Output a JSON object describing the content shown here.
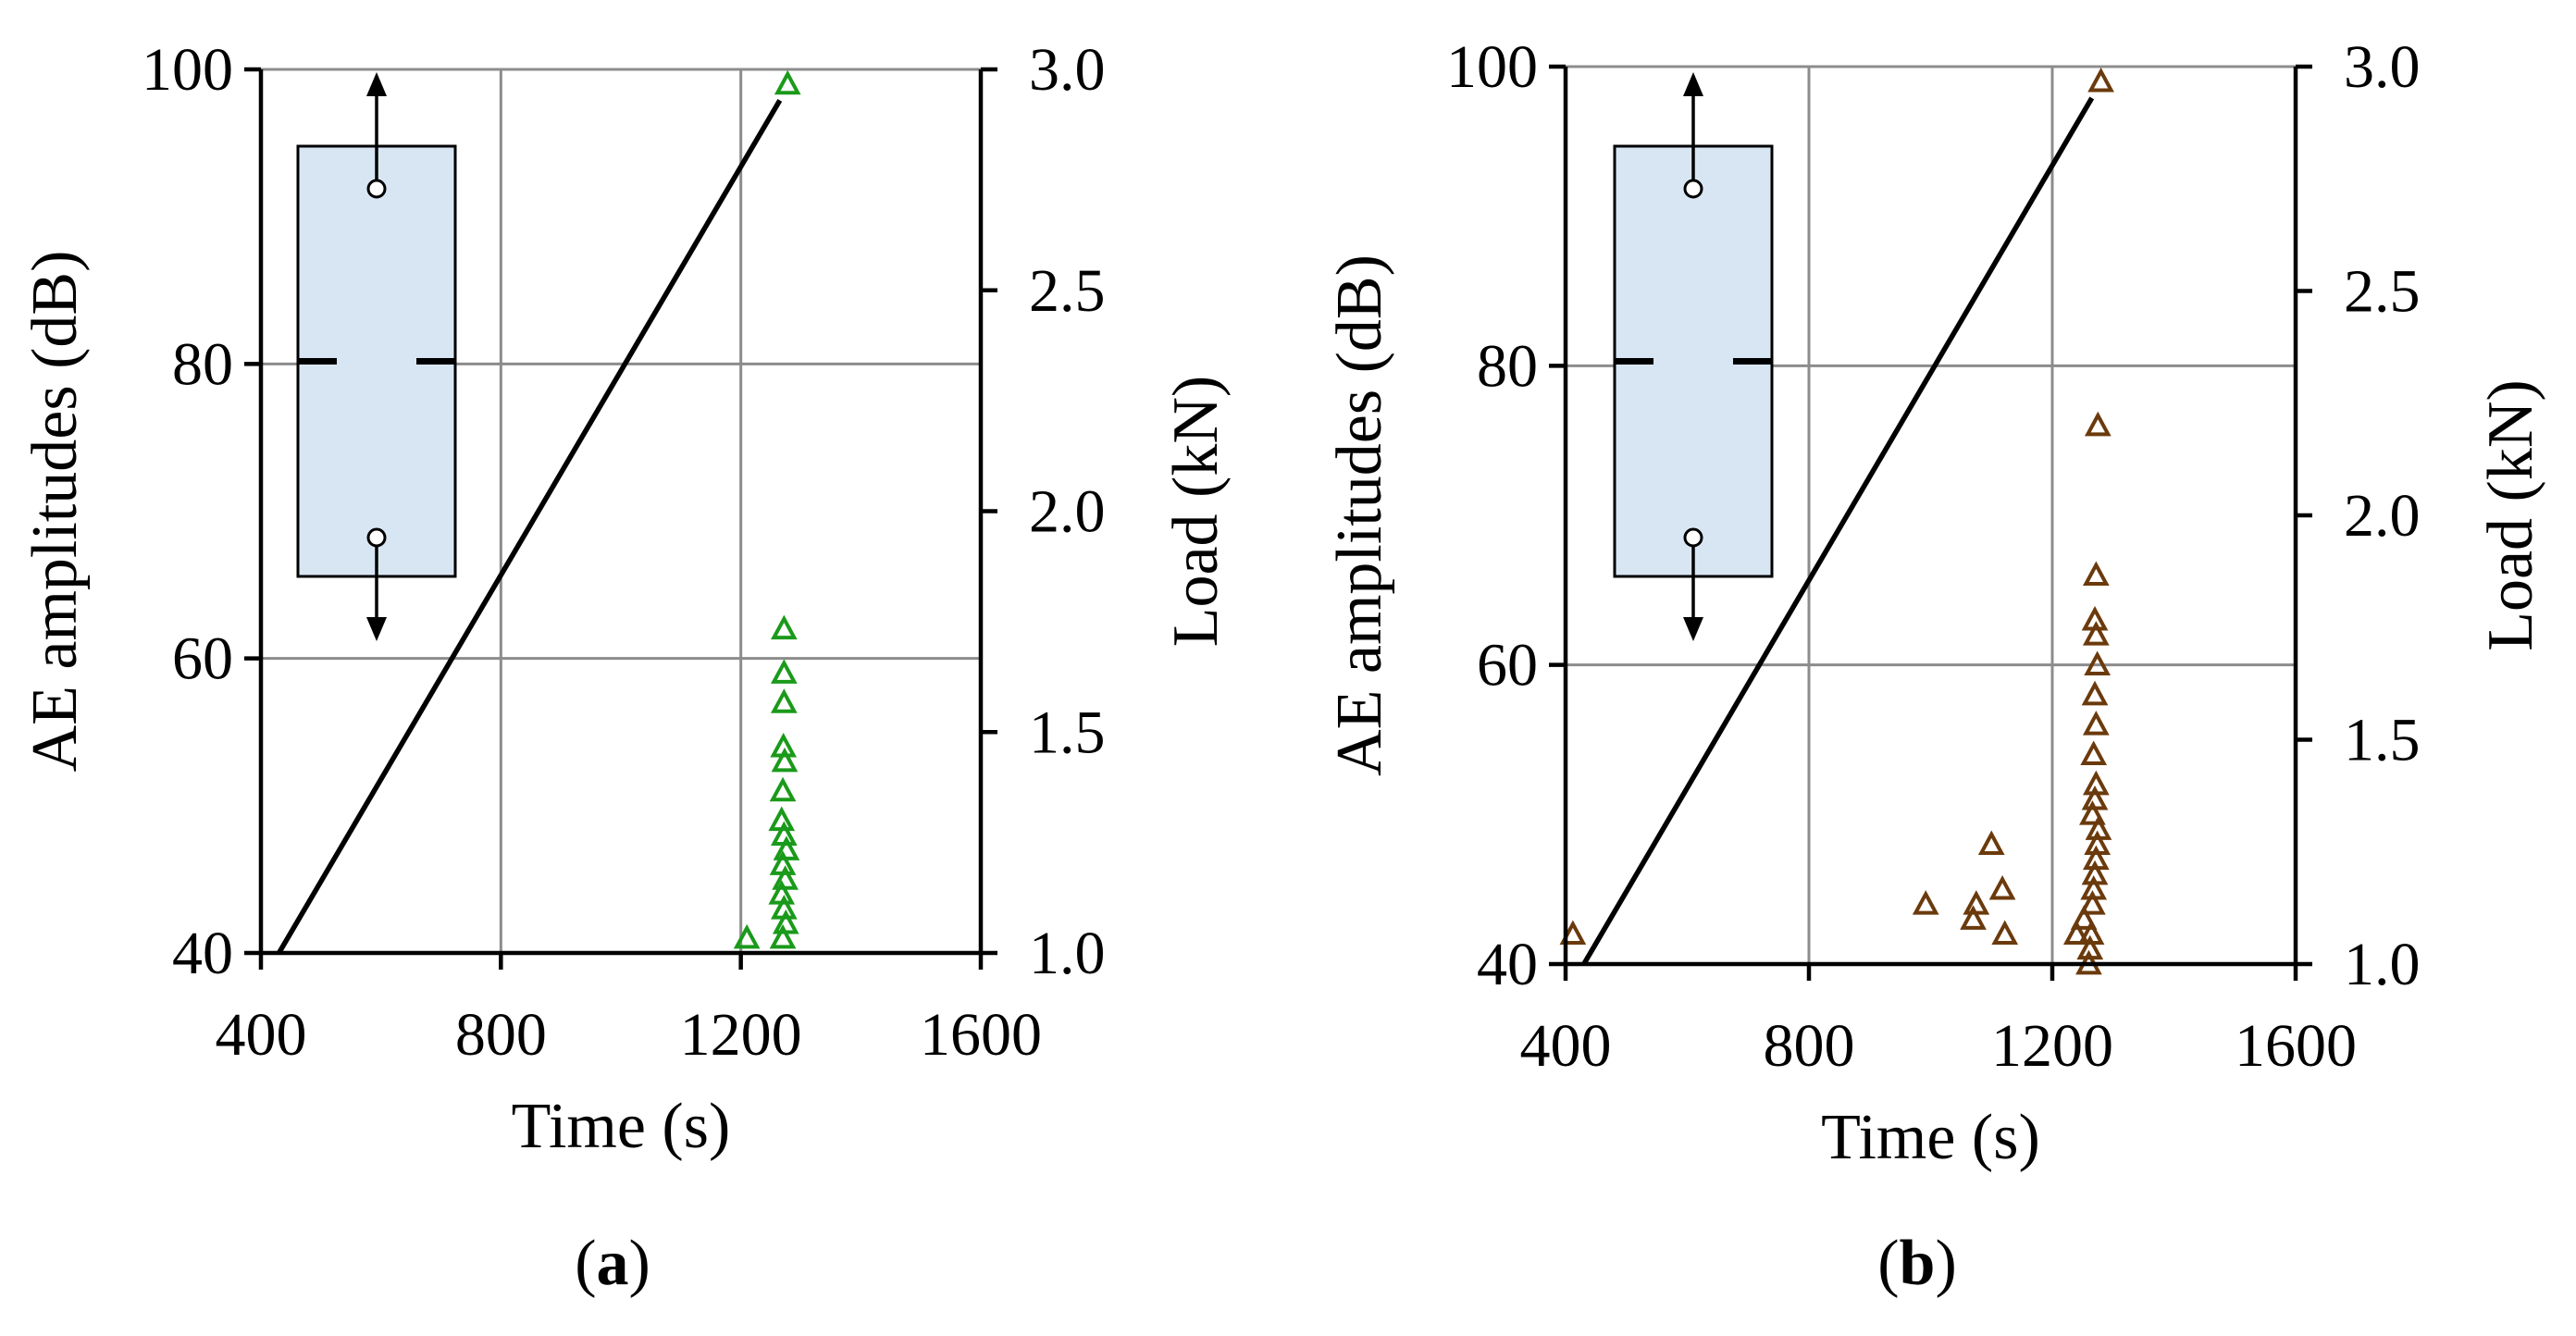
{
  "chart_data": [
    {
      "panel_label": "a",
      "type": "scatter",
      "xlabel": "Time (s)",
      "ylabel": "AE amplitudes (dB)",
      "y2label": "Load (kN)",
      "xlim": [
        400,
        1600
      ],
      "ylim": [
        40,
        100
      ],
      "y2lim": [
        1.0,
        3.0
      ],
      "xticks": [
        "400",
        "800",
        "1200",
        "1600"
      ],
      "yticks": [
        "40",
        "60",
        "80",
        "100"
      ],
      "y2ticks": [
        "1.0",
        "1.5",
        "2.0",
        "2.5",
        "3.0"
      ],
      "grid": true,
      "marker": "triangle-open",
      "marker_color": "#1a9a1a",
      "series": [
        {
          "kind": "line",
          "axis": "y2",
          "points": [
            [
              430,
              1.0
            ],
            [
              1265,
              2.93
            ]
          ]
        },
        {
          "kind": "scatter",
          "axis": "y",
          "points": [
            [
              1210,
              41
            ],
            [
              1270,
              41
            ],
            [
              1275,
              42
            ],
            [
              1272,
              43
            ],
            [
              1268,
              44
            ],
            [
              1274,
              45
            ],
            [
              1270,
              46
            ],
            [
              1276,
              47
            ],
            [
              1272,
              48
            ],
            [
              1268,
              49
            ],
            [
              1270,
              51
            ],
            [
              1273,
              53
            ],
            [
              1271,
              54
            ],
            [
              1272,
              57
            ],
            [
              1272,
              59
            ],
            [
              1272,
              62
            ],
            [
              1278,
              99
            ]
          ]
        }
      ],
      "inset": "specimen-schematic"
    },
    {
      "panel_label": "b",
      "type": "scatter",
      "xlabel": "Time (s)",
      "ylabel": "AE amplitudes (dB)",
      "y2label": "Load (kN)",
      "xlim": [
        400,
        1600
      ],
      "ylim": [
        40,
        100
      ],
      "y2lim": [
        1.0,
        3.0
      ],
      "xticks": [
        "400",
        "800",
        "1200",
        "1600"
      ],
      "yticks": [
        "40",
        "60",
        "80",
        "100"
      ],
      "y2ticks": [
        "1.0",
        "1.5",
        "2.0",
        "2.5",
        "3.0"
      ],
      "grid": true,
      "marker": "triangle-open",
      "marker_color": "#6b3a0c",
      "series": [
        {
          "kind": "line",
          "axis": "y2",
          "points": [
            [
              430,
              1.0
            ],
            [
              1265,
              2.93
            ]
          ]
        },
        {
          "kind": "scatter",
          "axis": "y",
          "points": [
            [
              412,
              42
            ],
            [
              992,
              44
            ],
            [
              1070,
              43
            ],
            [
              1075,
              44
            ],
            [
              1100,
              48
            ],
            [
              1118,
              45
            ],
            [
              1122,
              42
            ],
            [
              1240,
              42
            ],
            [
              1252,
              43
            ],
            [
              1260,
              40
            ],
            [
              1262,
              41
            ],
            [
              1264,
              42
            ],
            [
              1266,
              44
            ],
            [
              1268,
              45
            ],
            [
              1270,
              46
            ],
            [
              1272,
              47
            ],
            [
              1274,
              48
            ],
            [
              1276,
              49
            ],
            [
              1266,
              50
            ],
            [
              1270,
              51
            ],
            [
              1272,
              52
            ],
            [
              1268,
              54
            ],
            [
              1272,
              56
            ],
            [
              1270,
              58
            ],
            [
              1274,
              60
            ],
            [
              1272,
              62
            ],
            [
              1270,
              63
            ],
            [
              1272,
              66
            ],
            [
              1275,
              76
            ],
            [
              1280,
              99
            ]
          ]
        }
      ],
      "inset": "specimen-schematic"
    }
  ]
}
